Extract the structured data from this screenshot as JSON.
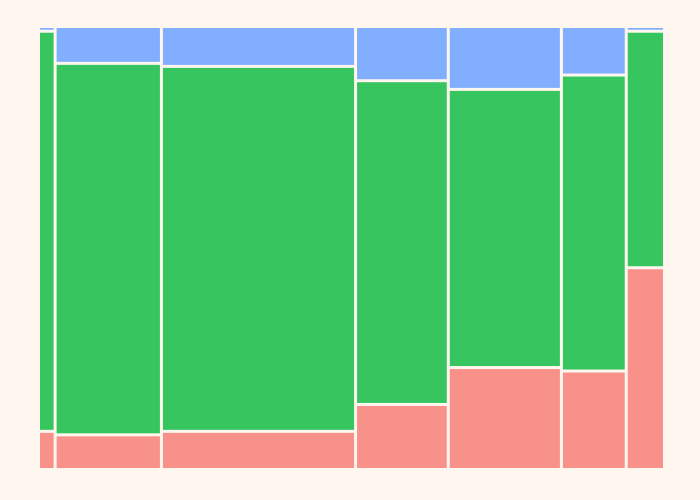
{
  "chart_data": {
    "type": "mosaic",
    "title": "",
    "xlabel": "",
    "ylabel": "",
    "legend": "none",
    "grid": false,
    "columns": [
      {
        "width_share": 0.022,
        "segments": [
          0.081,
          0.915,
          0.004
        ]
      },
      {
        "width_share": 0.167,
        "segments": [
          0.073,
          0.849,
          0.078
        ]
      },
      {
        "width_share": 0.309,
        "segments": [
          0.081,
          0.834,
          0.085
        ]
      },
      {
        "width_share": 0.145,
        "segments": [
          0.143,
          0.739,
          0.118
        ]
      },
      {
        "width_share": 0.178,
        "segments": [
          0.228,
          0.634,
          0.138
        ]
      },
      {
        "width_share": 0.1,
        "segments": [
          0.22,
          0.675,
          0.105
        ]
      },
      {
        "width_share": 0.057,
        "segments": [
          0.458,
          0.538,
          0.004
        ]
      }
    ],
    "segment_colors": [
      "#F8918A",
      "#36C55E",
      "#82AEFF"
    ]
  }
}
